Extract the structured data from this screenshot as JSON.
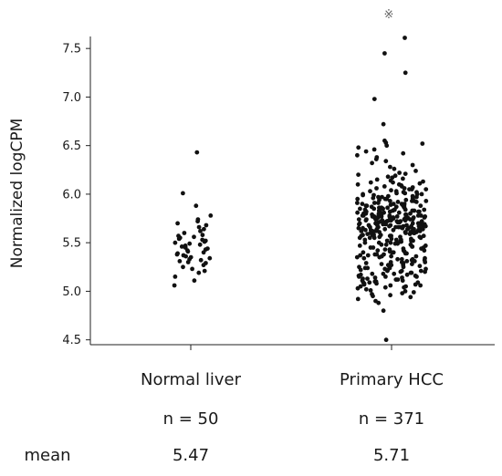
{
  "chart_data": {
    "type": "scatter",
    "subtype": "strip-plot",
    "title": "",
    "xlabel": "",
    "ylabel": "Normalized logCPM",
    "ylim": [
      4.45,
      7.68
    ],
    "yticks": [
      "4.5",
      "5.0",
      "5.5",
      "6.0",
      "6.5",
      "7.0",
      "7.5"
    ],
    "categories": [
      "Normal liver",
      "Primary HCC"
    ],
    "n_labels": [
      "n = 50",
      "n = 371"
    ],
    "mean_label": "mean",
    "mean_values": [
      "5.47",
      "5.71"
    ],
    "significance_mark": "※",
    "significance_category": "Primary HCC",
    "grid": false,
    "point_color": "#111111",
    "series": [
      {
        "category": "Normal liver",
        "n": 50,
        "mean": 5.47,
        "values": [
          6.43,
          6.01,
          5.88,
          5.78,
          5.74,
          5.72,
          5.7,
          5.68,
          5.66,
          5.64,
          5.62,
          5.6,
          5.58,
          5.57,
          5.56,
          5.55,
          5.54,
          5.53,
          5.52,
          5.51,
          5.5,
          5.49,
          5.48,
          5.47,
          5.46,
          5.45,
          5.44,
          5.43,
          5.42,
          5.41,
          5.4,
          5.39,
          5.38,
          5.37,
          5.36,
          5.35,
          5.34,
          5.33,
          5.32,
          5.31,
          5.3,
          5.29,
          5.27,
          5.25,
          5.23,
          5.21,
          5.19,
          5.15,
          5.11,
          5.06
        ]
      },
      {
        "category": "Primary HCC",
        "n": 371,
        "mean": 5.71,
        "values": [
          7.61,
          7.45,
          7.25,
          6.98,
          6.72,
          6.55,
          6.53,
          6.52,
          6.5,
          6.48,
          6.46,
          6.44,
          6.42,
          6.4,
          6.38,
          6.36,
          6.34,
          6.32,
          6.3,
          6.28,
          6.26,
          6.24,
          6.22,
          6.21,
          6.2,
          6.19,
          6.18,
          6.17,
          6.16,
          6.15,
          6.14,
          6.13,
          6.12,
          6.12,
          6.11,
          6.1,
          6.1,
          6.09,
          6.08,
          6.08,
          6.07,
          6.06,
          6.06,
          6.05,
          6.05,
          6.04,
          6.03,
          6.03,
          6.02,
          6.02,
          6.01,
          6.01,
          6.0,
          6.0,
          5.99,
          5.99,
          5.98,
          5.98,
          5.97,
          5.97,
          5.96,
          5.96,
          5.95,
          5.95,
          5.95,
          5.94,
          5.94,
          5.93,
          5.93,
          5.93,
          5.92,
          5.92,
          5.91,
          5.91,
          5.91,
          5.9,
          5.9,
          5.9,
          5.89,
          5.89,
          5.89,
          5.88,
          5.88,
          5.88,
          5.87,
          5.87,
          5.87,
          5.86,
          5.86,
          5.86,
          5.86,
          5.85,
          5.85,
          5.85,
          5.84,
          5.84,
          5.84,
          5.84,
          5.83,
          5.83,
          5.83,
          5.83,
          5.82,
          5.82,
          5.82,
          5.82,
          5.81,
          5.81,
          5.81,
          5.81,
          5.8,
          5.8,
          5.8,
          5.8,
          5.8,
          5.79,
          5.79,
          5.79,
          5.79,
          5.78,
          5.78,
          5.78,
          5.78,
          5.78,
          5.77,
          5.77,
          5.77,
          5.77,
          5.77,
          5.76,
          5.76,
          5.76,
          5.76,
          5.76,
          5.75,
          5.75,
          5.75,
          5.75,
          5.75,
          5.74,
          5.74,
          5.74,
          5.74,
          5.74,
          5.73,
          5.73,
          5.73,
          5.73,
          5.73,
          5.72,
          5.72,
          5.72,
          5.72,
          5.72,
          5.71,
          5.71,
          5.71,
          5.71,
          5.71,
          5.71,
          5.7,
          5.7,
          5.7,
          5.7,
          5.7,
          5.69,
          5.69,
          5.69,
          5.69,
          5.69,
          5.68,
          5.68,
          5.68,
          5.68,
          5.68,
          5.67,
          5.67,
          5.67,
          5.67,
          5.67,
          5.66,
          5.66,
          5.66,
          5.66,
          5.66,
          5.65,
          5.65,
          5.65,
          5.65,
          5.65,
          5.64,
          5.64,
          5.64,
          5.64,
          5.63,
          5.63,
          5.63,
          5.63,
          5.62,
          5.62,
          5.62,
          5.62,
          5.61,
          5.61,
          5.61,
          5.61,
          5.6,
          5.6,
          5.6,
          5.6,
          5.59,
          5.59,
          5.59,
          5.58,
          5.58,
          5.58,
          5.57,
          5.57,
          5.57,
          5.56,
          5.56,
          5.56,
          5.55,
          5.55,
          5.55,
          5.54,
          5.54,
          5.53,
          5.53,
          5.53,
          5.52,
          5.52,
          5.51,
          5.51,
          5.5,
          5.5,
          5.49,
          5.49,
          5.48,
          5.48,
          5.47,
          5.47,
          5.46,
          5.46,
          5.45,
          5.45,
          5.44,
          5.44,
          5.43,
          5.43,
          5.42,
          5.42,
          5.41,
          5.41,
          5.4,
          5.4,
          5.39,
          5.39,
          5.38,
          5.38,
          5.37,
          5.37,
          5.36,
          5.36,
          5.35,
          5.35,
          5.34,
          5.34,
          5.33,
          5.33,
          5.32,
          5.32,
          5.31,
          5.31,
          5.3,
          5.3,
          5.29,
          5.29,
          5.28,
          5.28,
          5.27,
          5.27,
          5.26,
          5.26,
          5.25,
          5.25,
          5.24,
          5.24,
          5.23,
          5.23,
          5.22,
          5.22,
          5.21,
          5.21,
          5.2,
          5.2,
          5.19,
          5.19,
          5.18,
          5.18,
          5.17,
          5.17,
          5.16,
          5.16,
          5.15,
          5.15,
          5.14,
          5.14,
          5.13,
          5.13,
          5.12,
          5.12,
          5.11,
          5.11,
          5.1,
          5.1,
          5.09,
          5.09,
          5.08,
          5.08,
          5.07,
          5.07,
          5.06,
          5.06,
          5.05,
          5.05,
          5.04,
          5.04,
          5.03,
          5.02,
          5.01,
          5.0,
          4.99,
          4.98,
          4.97,
          4.96,
          4.95,
          4.94,
          4.92,
          4.9,
          4.88,
          4.8,
          4.5,
          5.95,
          5.9,
          5.85,
          5.82,
          5.78,
          5.76,
          5.72,
          5.7,
          5.66,
          5.62,
          5.58,
          5.55,
          5.52,
          5.48,
          5.45,
          5.42,
          5.4,
          5.36,
          5.33,
          5.3,
          5.27,
          5.24,
          5.21,
          5.18,
          5.15,
          5.12,
          5.09,
          6.05,
          6.0,
          5.97,
          5.93,
          5.88,
          5.84,
          5.8,
          5.77,
          5.74,
          5.68,
          5.64,
          5.6,
          5.57,
          5.5,
          5.38
        ]
      }
    ]
  }
}
